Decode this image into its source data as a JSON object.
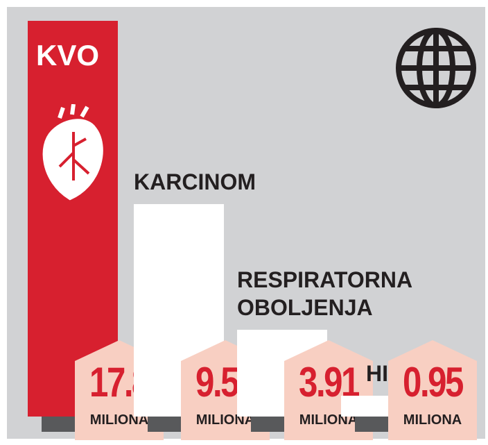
{
  "chart_data": {
    "type": "bar",
    "categories": [
      "KVO",
      "KARCINOM",
      "RESPIRATORNA OBOLJENJA",
      "HIV"
    ],
    "values": [
      17.8,
      9.56,
      3.91,
      0.95
    ],
    "unit": "MILIONA",
    "colors": [
      "#d7202f",
      "#ffffff",
      "#ffffff",
      "#ffffff"
    ],
    "badge_color": "#f8cfc2"
  }
}
